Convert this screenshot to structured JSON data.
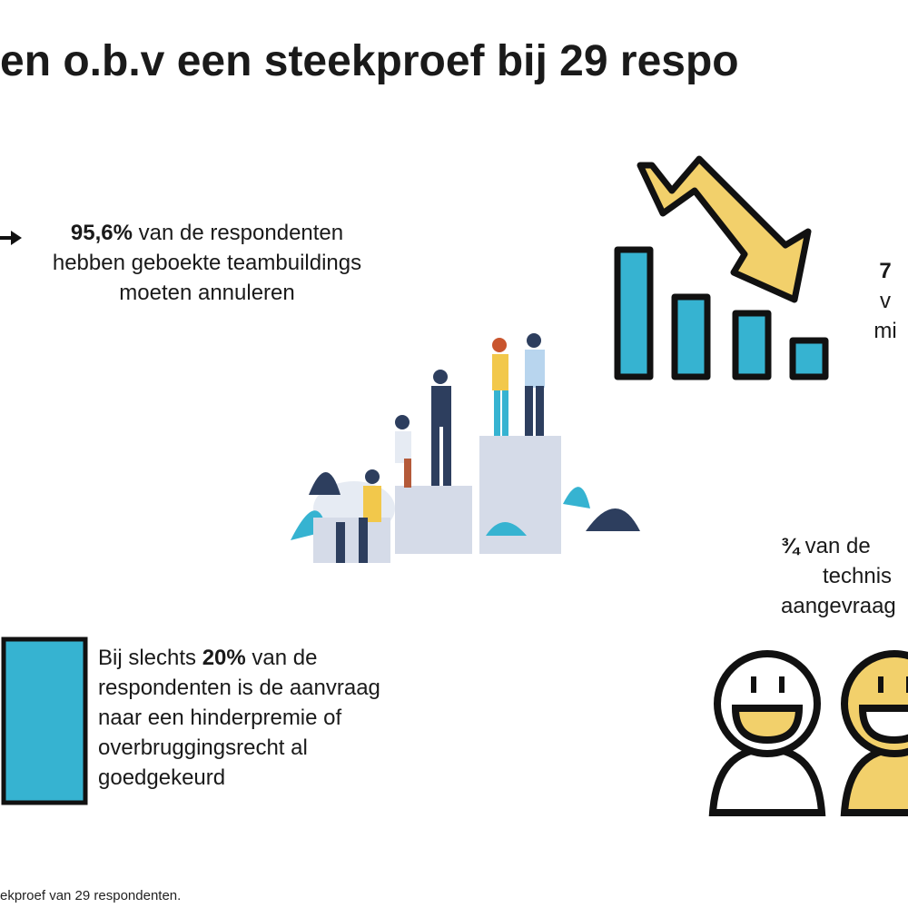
{
  "title": "en o.b.v een steekproef bij 29 respo",
  "stat_teambuilding": {
    "bold": "95,6%",
    "line1_rest": " van de respondenten",
    "line2": "hebben geboekte teambuildings",
    "line3": "moeten annuleren"
  },
  "stat_decline": {
    "bold": "7",
    "line2": "v",
    "line3": "mi"
  },
  "stat_technical": {
    "bold": "¾",
    "line1_rest": " van de",
    "line2": "technis",
    "line3": "aangevraag"
  },
  "stat_premium": {
    "line1_pre": "Bij slechts ",
    "bold": "20%",
    "line1_rest": " van de",
    "line2": "respondenten is de aanvraag",
    "line3": "naar een hinderpremie of",
    "line4": "overbruggingsrecht al",
    "line5": "goedgekeurd"
  },
  "footer": "ekproef van 29 respondenten.",
  "colors": {
    "blue": "#36b3d1",
    "yellow": "#f2d06b",
    "outline": "#111111",
    "illustration_navy": "#2d3e5e",
    "podium": "#d5dbe8"
  },
  "icons": [
    "arrow-right-icon",
    "declining-bar-chart-icon",
    "smiley-faces-icon",
    "people-podium-illustration",
    "blue-bar-icon"
  ]
}
